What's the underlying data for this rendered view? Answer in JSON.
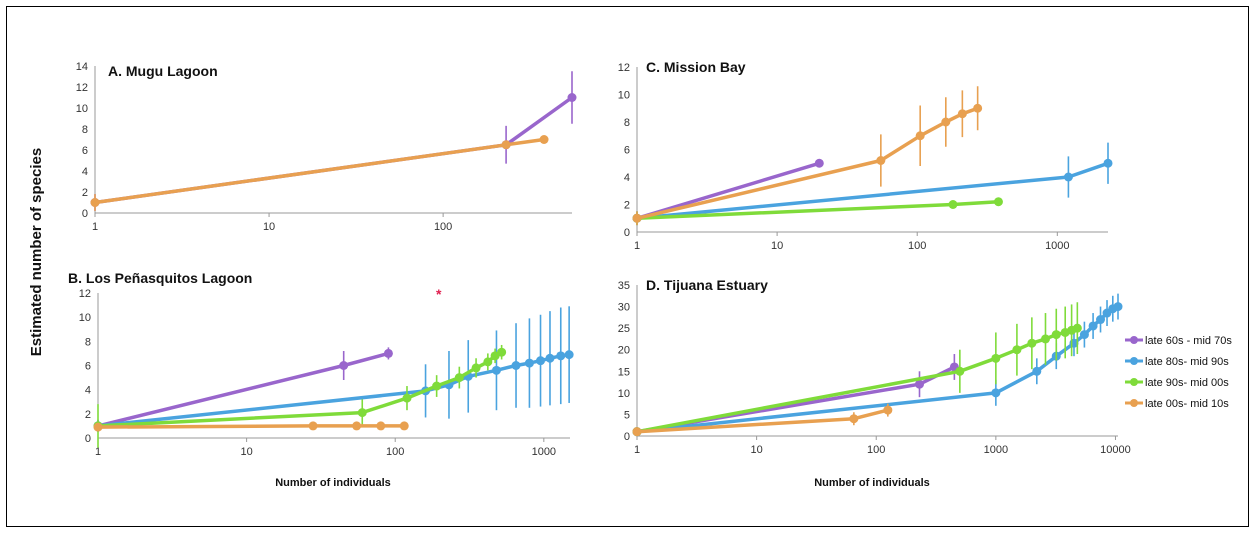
{
  "figure": {
    "ylabel": "Estimated number of species",
    "xlabel": "Number of individuals",
    "colors": {
      "late 60s - mid 70s": "#9966cc",
      "late 80s- mid 90s": "#4aa3df",
      "late 90s- mid 00s": "#7fdb3a",
      "late 00s- mid 10s": "#e8a050"
    },
    "legend": [
      "late 60s - mid 70s",
      "late 80s- mid 90s",
      "late 90s- mid 00s",
      "late 00s- mid 10s"
    ],
    "annotation": "*"
  },
  "chart_data": [
    {
      "type": "line",
      "title": "A.  Mugu Lagoon",
      "xscale": "log",
      "xlim": [
        1,
        550
      ],
      "ylim": [
        0,
        14
      ],
      "xticks": [
        "1",
        "10",
        "100"
      ],
      "yticks": [
        "0",
        "2",
        "4",
        "6",
        "8",
        "10",
        "12",
        "14"
      ],
      "series": [
        {
          "name": "late 60s - mid 70s",
          "x": [
            1,
            230,
            550
          ],
          "y": [
            1,
            6.5,
            11
          ],
          "err": [
            0.8,
            1.8,
            2.5
          ]
        },
        {
          "name": "late 00s- mid 10s",
          "x": [
            1,
            230,
            380
          ],
          "y": [
            1,
            6.5,
            7
          ],
          "err": [
            0.8,
            0,
            0
          ]
        }
      ]
    },
    {
      "type": "line",
      "title": "B. Los Peñasquitos Lagoon",
      "xscale": "log",
      "xlim": [
        1,
        1500
      ],
      "ylim": [
        0,
        12
      ],
      "xticks": [
        "1",
        "10",
        "100",
        "1000"
      ],
      "yticks": [
        "0",
        "2",
        "4",
        "6",
        "8",
        "10",
        "12"
      ],
      "series": [
        {
          "name": "late 60s - mid 70s",
          "x": [
            1,
            45,
            90
          ],
          "y": [
            1,
            6,
            7
          ],
          "err": [
            0.5,
            1.2,
            0.5
          ]
        },
        {
          "name": "late 80s- mid 90s",
          "x": [
            1,
            160,
            230,
            310,
            480,
            650,
            800,
            950,
            1100,
            1300,
            1480
          ],
          "y": [
            1,
            3.9,
            4.4,
            5.1,
            5.6,
            6,
            6.2,
            6.4,
            6.6,
            6.8,
            6.9
          ],
          "err": [
            0.5,
            2.2,
            2.8,
            3,
            3.3,
            3.5,
            3.7,
            3.8,
            3.9,
            4,
            4
          ]
        },
        {
          "name": "late 90s- mid 00s",
          "x": [
            1,
            60,
            120,
            190,
            270,
            350,
            420,
            470,
            520
          ],
          "y": [
            1,
            2.1,
            3.3,
            4.3,
            5,
            5.8,
            6.3,
            6.8,
            7.1
          ],
          "err": [
            1.8,
            1.1,
            1,
            0.9,
            0.9,
            0.8,
            0.7,
            0.6,
            0.6
          ]
        },
        {
          "name": "late 00s- mid 10s",
          "x": [
            1,
            28,
            55,
            80,
            115
          ],
          "y": [
            0.9,
            1,
            1,
            1,
            1
          ],
          "err": [
            0.2,
            0,
            0,
            0,
            0
          ]
        }
      ]
    },
    {
      "type": "line",
      "title": "C. Mission Bay",
      "xscale": "log",
      "xlim": [
        1,
        2300
      ],
      "ylim": [
        0,
        12
      ],
      "xticks": [
        "1",
        "10",
        "100",
        "1000"
      ],
      "yticks": [
        "0",
        "2",
        "4",
        "6",
        "8",
        "10",
        "12"
      ],
      "series": [
        {
          "name": "late 60s - mid 70s",
          "x": [
            1,
            20
          ],
          "y": [
            1,
            5
          ],
          "err": [
            0.5,
            0
          ]
        },
        {
          "name": "late 80s- mid 90s",
          "x": [
            1,
            1200,
            2300
          ],
          "y": [
            1,
            4,
            5
          ],
          "err": [
            0.5,
            1.5,
            1.5
          ]
        },
        {
          "name": "late 90s- mid 00s",
          "x": [
            1,
            180,
            380
          ],
          "y": [
            1,
            2,
            2.2
          ],
          "err": [
            0.5,
            0,
            0
          ]
        },
        {
          "name": "late 00s- mid 10s",
          "x": [
            1,
            55,
            105,
            160,
            210,
            270
          ],
          "y": [
            1,
            5.2,
            7,
            8,
            8.6,
            9
          ],
          "err": [
            0.5,
            1.9,
            2.2,
            1.8,
            1.7,
            1.6
          ]
        }
      ]
    },
    {
      "type": "line",
      "title": "D. Tijuana Estuary",
      "xscale": "log",
      "xlim": [
        1,
        10500
      ],
      "ylim": [
        0,
        35
      ],
      "xticks": [
        "1",
        "10",
        "100",
        "1000",
        "10000"
      ],
      "yticks": [
        "0",
        "5",
        "10",
        "15",
        "20",
        "25",
        "30",
        "35"
      ],
      "series": [
        {
          "name": "late 60s - mid 70s",
          "x": [
            1,
            230,
            450
          ],
          "y": [
            1,
            12,
            16
          ],
          "err": [
            0.5,
            3,
            3
          ]
        },
        {
          "name": "late 80s- mid 90s",
          "x": [
            1,
            1000,
            2200,
            3200,
            4500,
            5500,
            6500,
            7500,
            8500,
            9500,
            10500
          ],
          "y": [
            1,
            10,
            15,
            18.5,
            21.5,
            23.5,
            25.5,
            27,
            28.5,
            29.5,
            30
          ],
          "err": [
            0.5,
            3,
            3,
            3,
            3,
            3,
            3,
            3,
            3,
            3,
            3
          ]
        },
        {
          "name": "late 90s- mid 00s",
          "x": [
            1,
            500,
            1000,
            1500,
            2000,
            2600,
            3200,
            3800,
            4300,
            4800
          ],
          "y": [
            1,
            15,
            18,
            20,
            21.5,
            22.5,
            23.5,
            24,
            24.5,
            25
          ],
          "err": [
            0.5,
            5,
            6,
            6,
            6,
            6,
            6,
            6,
            6,
            6
          ]
        },
        {
          "name": "late 00s- mid 10s",
          "x": [
            1,
            65,
            125
          ],
          "y": [
            1,
            4,
            6
          ],
          "err": [
            0.5,
            1.5,
            1.5
          ]
        }
      ]
    }
  ]
}
